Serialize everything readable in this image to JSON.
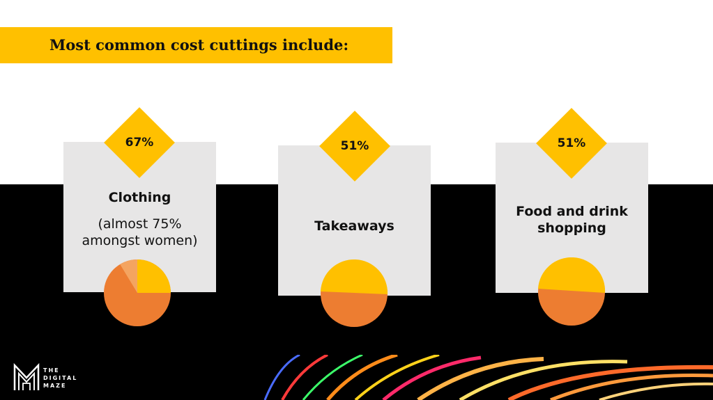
{
  "title": "Most common cost cuttings include:",
  "cards": [
    {
      "percent": "67%",
      "label": "Clothing",
      "sublabel_line1": "(almost 75%",
      "sublabel_line2": "amongst women)",
      "pie_value": 67
    },
    {
      "percent": "51%",
      "label": "Takeaways",
      "pie_value": 51
    },
    {
      "percent": "51%",
      "label_line1": "Food and drink",
      "label_line2": "shopping",
      "pie_value": 51
    }
  ],
  "logo": {
    "line1": "THE",
    "line2": "DIGITAL",
    "line3": "MAZE",
    "icon": "maze-m-logo-icon"
  },
  "colors": {
    "accent": "#ffc000",
    "pie_orange": "#ed7d31",
    "pie_light": "#f4a460",
    "card": "#e7e6e6"
  }
}
